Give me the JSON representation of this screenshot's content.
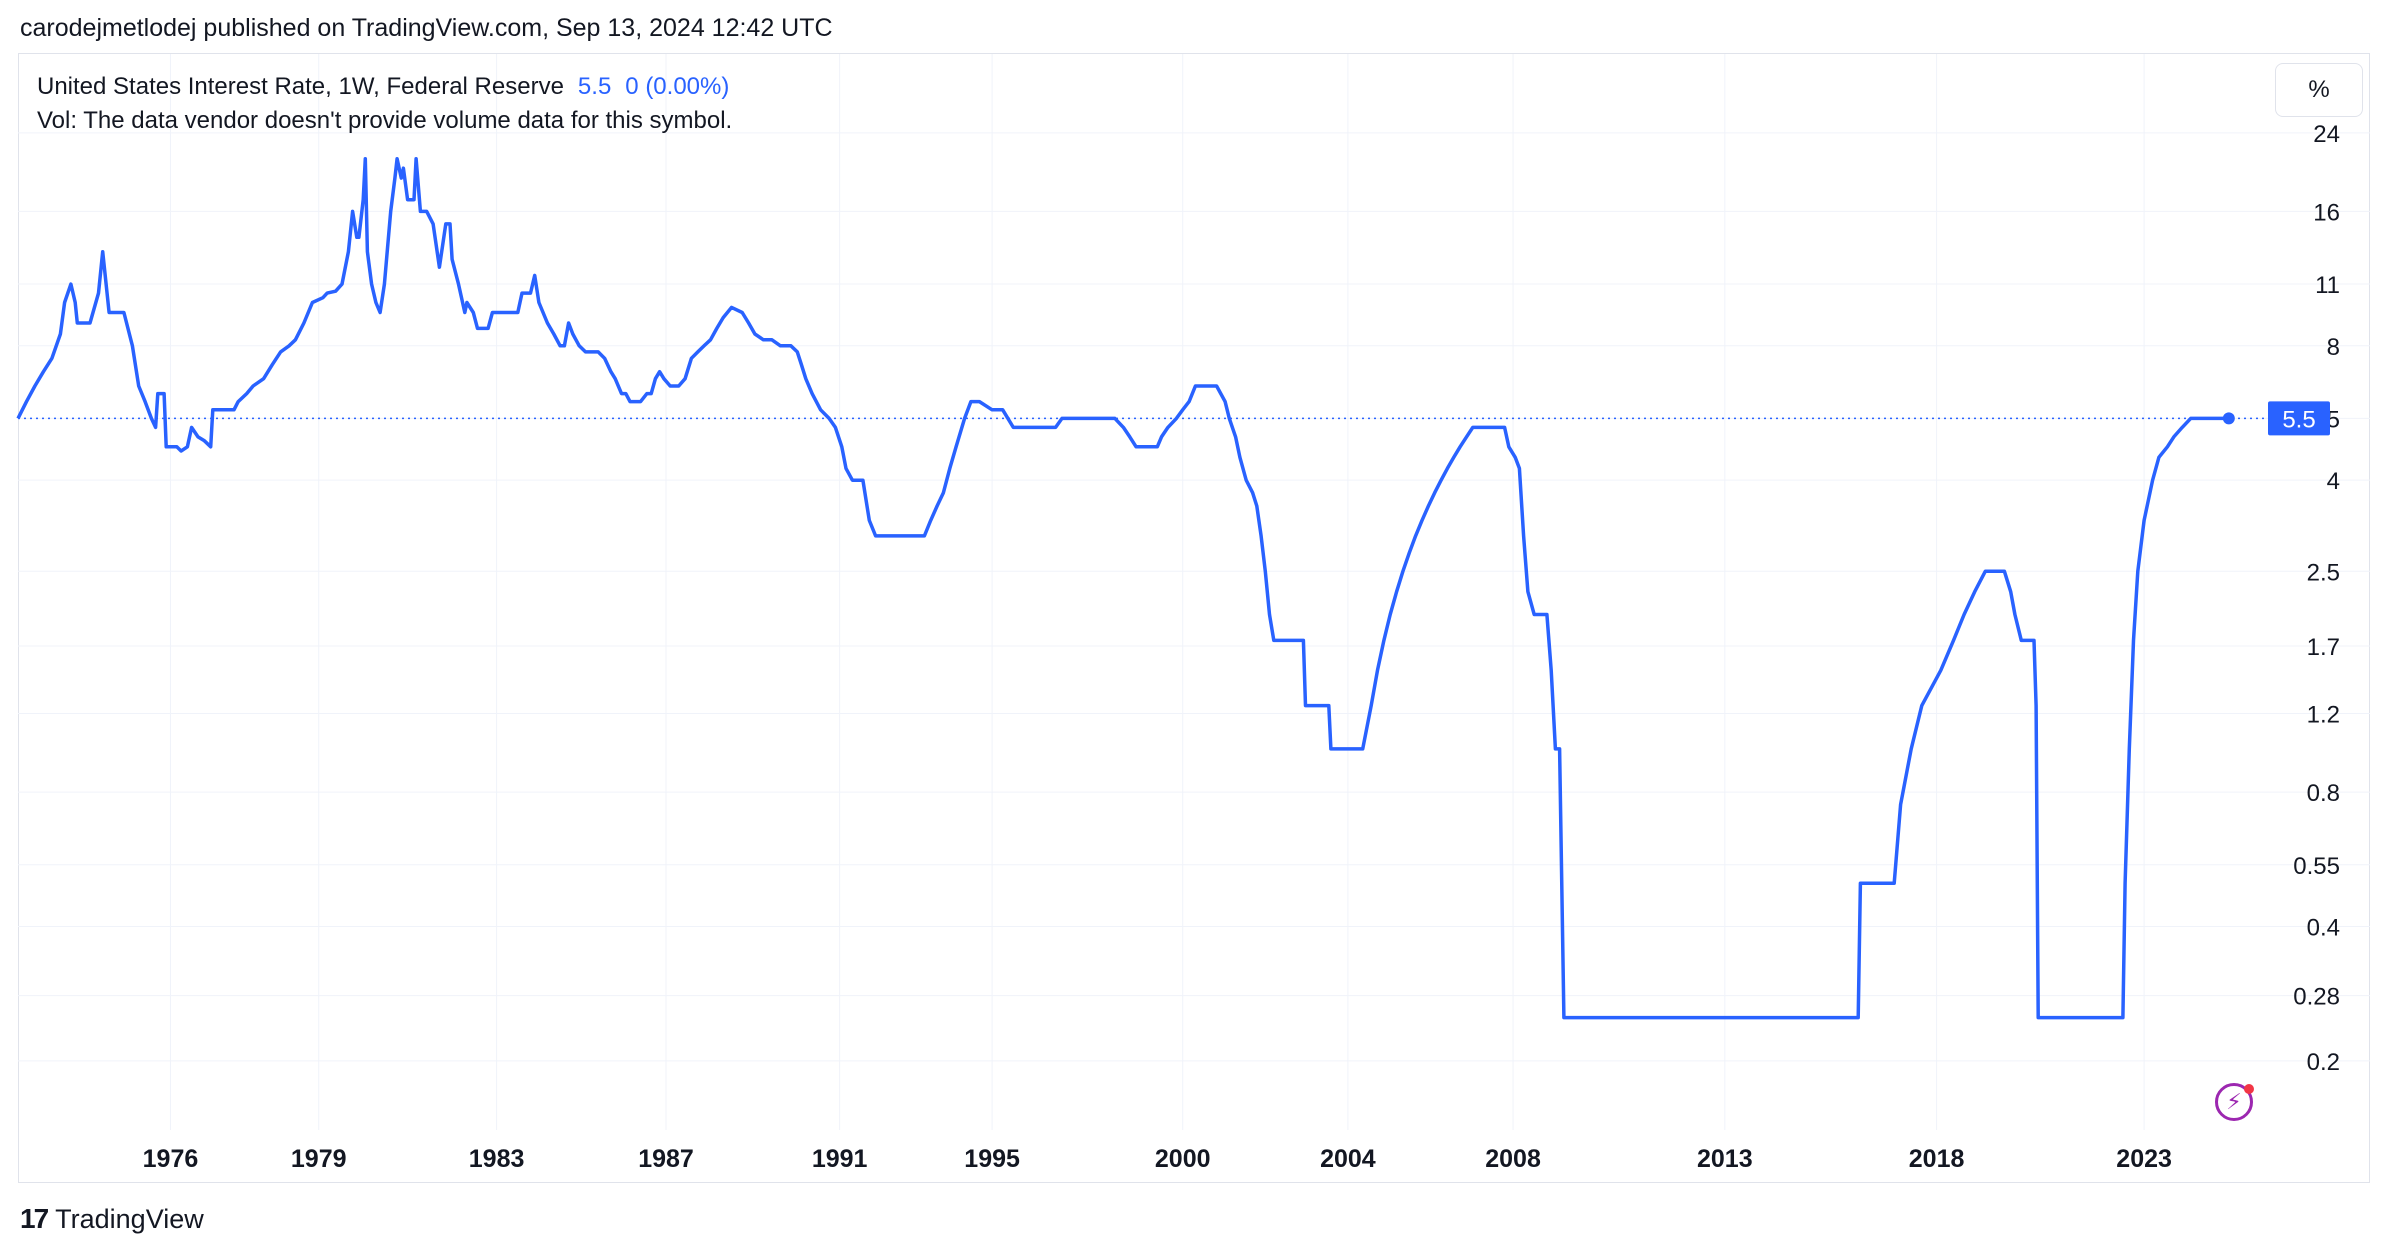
{
  "header": {
    "published_line": "carodejmetlodej published on TradingView.com, Sep 13, 2024 12:42 UTC"
  },
  "legend": {
    "symbol": "United States Interest Rate, 1W, Federal Reserve",
    "last_value": "5.5",
    "change": "0 (0.00%)",
    "volume_note": "Vol: The data vendor doesn't provide volume data for this symbol."
  },
  "toolbar": {
    "unit_label": "%"
  },
  "price_label": "5.5",
  "footer": {
    "brand": "TradingView",
    "logo_mark": "17"
  },
  "colors": {
    "line": "#2962ff",
    "grid": "#f0f3fa",
    "text": "#131722",
    "accent": "#2962ff"
  },
  "chart_data": {
    "type": "line",
    "y_scale": "log",
    "ylim": [
      0.14,
      27
    ],
    "xlim": [
      1972.5,
      2025.2
    ],
    "y_ticks": [
      "24",
      "16",
      "11",
      "8",
      "5.5",
      "4",
      "2.5",
      "1.7",
      "1.2",
      "0.8",
      "0.55",
      "0.4",
      "0.28",
      "0.2"
    ],
    "y_tick_values": [
      24,
      16,
      11,
      8,
      5.5,
      4,
      2.5,
      1.7,
      1.2,
      0.8,
      0.55,
      0.4,
      0.28,
      0.2
    ],
    "x_ticks": [
      "1976",
      "1979",
      "1983",
      "1987",
      "1991",
      "1995",
      "2000",
      "2004",
      "2008",
      "2013",
      "2018",
      "2023"
    ],
    "x_tick_values": [
      1976.1,
      1979.6,
      1983.8,
      1987.8,
      1991.9,
      1995.5,
      2000.0,
      2003.9,
      2007.8,
      2012.8,
      2017.8,
      2022.7
    ],
    "current_value": 5.5,
    "series": [
      {
        "points": [
          [
            1972.5,
            5.5
          ],
          [
            1972.7,
            6.0
          ],
          [
            1972.9,
            6.5
          ],
          [
            1973.1,
            7.0
          ],
          [
            1973.3,
            7.5
          ],
          [
            1973.5,
            8.5
          ],
          [
            1973.6,
            10.0
          ],
          [
            1973.75,
            11.0
          ],
          [
            1973.85,
            10.0
          ],
          [
            1973.9,
            9.0
          ],
          [
            1974.2,
            9.0
          ],
          [
            1974.4,
            10.5
          ],
          [
            1974.5,
            13.0
          ],
          [
            1974.65,
            9.5
          ],
          [
            1975.0,
            9.5
          ],
          [
            1975.2,
            8.0
          ],
          [
            1975.35,
            6.5
          ],
          [
            1975.5,
            6.0
          ],
          [
            1975.65,
            5.5
          ],
          [
            1975.75,
            5.25
          ],
          [
            1975.8,
            6.25
          ],
          [
            1975.95,
            6.25
          ],
          [
            1976.0,
            4.75
          ],
          [
            1976.25,
            4.75
          ],
          [
            1976.35,
            4.65
          ],
          [
            1976.5,
            4.75
          ],
          [
            1976.6,
            5.25
          ],
          [
            1976.75,
            5.0
          ],
          [
            1976.9,
            4.9
          ],
          [
            1977.05,
            4.75
          ],
          [
            1977.1,
            5.75
          ],
          [
            1977.4,
            5.75
          ],
          [
            1977.6,
            5.75
          ],
          [
            1977.7,
            6.0
          ],
          [
            1977.9,
            6.25
          ],
          [
            1978.05,
            6.5
          ],
          [
            1978.3,
            6.75
          ],
          [
            1978.5,
            7.25
          ],
          [
            1978.7,
            7.75
          ],
          [
            1978.9,
            8.0
          ],
          [
            1979.05,
            8.25
          ],
          [
            1979.25,
            9.0
          ],
          [
            1979.45,
            10.0
          ],
          [
            1979.7,
            10.25
          ],
          [
            1979.8,
            10.5
          ],
          [
            1980.0,
            10.6
          ],
          [
            1980.15,
            11.0
          ],
          [
            1980.3,
            13.0
          ],
          [
            1980.4,
            16.0
          ],
          [
            1980.5,
            14.0
          ],
          [
            1980.55,
            14.0
          ],
          [
            1980.65,
            17.0
          ],
          [
            1980.7,
            21.0
          ],
          [
            1980.75,
            13.0
          ],
          [
            1980.85,
            11.0
          ],
          [
            1980.95,
            10.0
          ],
          [
            1981.05,
            9.5
          ],
          [
            1981.15,
            11.0
          ],
          [
            1981.3,
            16.0
          ],
          [
            1981.4,
            19.0
          ],
          [
            1981.45,
            21.0
          ],
          [
            1981.55,
            19.0
          ],
          [
            1981.6,
            20.0
          ],
          [
            1981.7,
            17.0
          ],
          [
            1981.85,
            17.0
          ],
          [
            1981.9,
            21.0
          ],
          [
            1982.0,
            16.0
          ],
          [
            1982.15,
            16.0
          ],
          [
            1982.3,
            15.0
          ],
          [
            1982.45,
            12.0
          ],
          [
            1982.6,
            15.0
          ],
          [
            1982.7,
            15.0
          ],
          [
            1982.75,
            12.5
          ],
          [
            1982.9,
            11.0
          ],
          [
            1983.05,
            9.5
          ],
          [
            1983.1,
            10.0
          ],
          [
            1983.25,
            9.5
          ],
          [
            1983.35,
            8.75
          ],
          [
            1983.6,
            8.75
          ],
          [
            1983.7,
            9.5
          ],
          [
            1984.0,
            9.5
          ],
          [
            1984.3,
            9.5
          ],
          [
            1984.4,
            10.5
          ],
          [
            1984.6,
            10.5
          ],
          [
            1984.7,
            11.5
          ],
          [
            1984.8,
            10.0
          ],
          [
            1985.0,
            9.0
          ],
          [
            1985.15,
            8.5
          ],
          [
            1985.3,
            8.0
          ],
          [
            1985.4,
            8.0
          ],
          [
            1985.5,
            9.0
          ],
          [
            1985.6,
            8.5
          ],
          [
            1985.75,
            8.0
          ],
          [
            1985.9,
            7.75
          ],
          [
            1986.2,
            7.75
          ],
          [
            1986.35,
            7.5
          ],
          [
            1986.5,
            7.0
          ],
          [
            1986.6,
            6.75
          ],
          [
            1986.75,
            6.25
          ],
          [
            1986.85,
            6.25
          ],
          [
            1986.95,
            6.0
          ],
          [
            1987.2,
            6.0
          ],
          [
            1987.35,
            6.25
          ],
          [
            1987.45,
            6.25
          ],
          [
            1987.55,
            6.75
          ],
          [
            1987.65,
            7.0
          ],
          [
            1987.75,
            6.75
          ],
          [
            1987.9,
            6.5
          ],
          [
            1988.1,
            6.5
          ],
          [
            1988.25,
            6.75
          ],
          [
            1988.4,
            7.5
          ],
          [
            1988.55,
            7.75
          ],
          [
            1988.7,
            8.0
          ],
          [
            1988.85,
            8.25
          ],
          [
            1989.0,
            8.75
          ],
          [
            1989.15,
            9.25
          ],
          [
            1989.35,
            9.75
          ],
          [
            1989.6,
            9.5
          ],
          [
            1989.75,
            9.0
          ],
          [
            1989.9,
            8.5
          ],
          [
            1990.1,
            8.25
          ],
          [
            1990.3,
            8.25
          ],
          [
            1990.5,
            8.0
          ],
          [
            1990.75,
            8.0
          ],
          [
            1990.9,
            7.75
          ],
          [
            1991.0,
            7.25
          ],
          [
            1991.1,
            6.75
          ],
          [
            1991.25,
            6.25
          ],
          [
            1991.45,
            5.75
          ],
          [
            1991.65,
            5.5
          ],
          [
            1991.8,
            5.25
          ],
          [
            1991.95,
            4.75
          ],
          [
            1992.05,
            4.25
          ],
          [
            1992.2,
            4.0
          ],
          [
            1992.45,
            4.0
          ],
          [
            1992.6,
            3.25
          ],
          [
            1992.75,
            3.0
          ],
          [
            1993.0,
            3.0
          ],
          [
            1993.5,
            3.0
          ],
          [
            1993.9,
            3.0
          ],
          [
            1994.05,
            3.25
          ],
          [
            1994.2,
            3.5
          ],
          [
            1994.35,
            3.75
          ],
          [
            1994.5,
            4.25
          ],
          [
            1994.65,
            4.75
          ],
          [
            1994.85,
            5.5
          ],
          [
            1995.0,
            6.0
          ],
          [
            1995.2,
            6.0
          ],
          [
            1995.5,
            5.75
          ],
          [
            1995.75,
            5.75
          ],
          [
            1996.0,
            5.25
          ],
          [
            1996.3,
            5.25
          ],
          [
            1996.75,
            5.25
          ],
          [
            1997.0,
            5.25
          ],
          [
            1997.15,
            5.5
          ],
          [
            1997.5,
            5.5
          ],
          [
            1998.0,
            5.5
          ],
          [
            1998.4,
            5.5
          ],
          [
            1998.6,
            5.25
          ],
          [
            1998.75,
            5.0
          ],
          [
            1998.9,
            4.75
          ],
          [
            1999.1,
            4.75
          ],
          [
            1999.4,
            4.75
          ],
          [
            1999.5,
            5.0
          ],
          [
            1999.65,
            5.25
          ],
          [
            1999.85,
            5.5
          ],
          [
            2000.0,
            5.75
          ],
          [
            2000.15,
            6.0
          ],
          [
            2000.3,
            6.5
          ],
          [
            2000.6,
            6.5
          ],
          [
            2000.8,
            6.5
          ],
          [
            2001.0,
            6.0
          ],
          [
            2001.1,
            5.5
          ],
          [
            2001.25,
            5.0
          ],
          [
            2001.35,
            4.5
          ],
          [
            2001.5,
            4.0
          ],
          [
            2001.65,
            3.75
          ],
          [
            2001.75,
            3.5
          ],
          [
            2001.85,
            3.0
          ],
          [
            2001.95,
            2.5
          ],
          [
            2002.05,
            2.0
          ],
          [
            2002.15,
            1.75
          ],
          [
            2002.5,
            1.75
          ],
          [
            2002.85,
            1.75
          ],
          [
            2002.9,
            1.25
          ],
          [
            2003.2,
            1.25
          ],
          [
            2003.45,
            1.25
          ],
          [
            2003.5,
            1.0
          ],
          [
            2003.75,
            1.0
          ],
          [
            2004.0,
            1.0
          ],
          [
            2004.25,
            1.0
          ],
          [
            2004.45,
            1.25
          ],
          [
            2004.6,
            1.5
          ],
          [
            2004.75,
            1.75
          ],
          [
            2004.9,
            2.0
          ],
          [
            2005.05,
            2.25
          ],
          [
            2005.2,
            2.5
          ],
          [
            2005.35,
            2.75
          ],
          [
            2005.5,
            3.0
          ],
          [
            2005.65,
            3.25
          ],
          [
            2005.8,
            3.5
          ],
          [
            2005.95,
            3.75
          ],
          [
            2006.1,
            4.0
          ],
          [
            2006.25,
            4.25
          ],
          [
            2006.4,
            4.5
          ],
          [
            2006.55,
            4.75
          ],
          [
            2006.7,
            5.0
          ],
          [
            2006.85,
            5.25
          ],
          [
            2007.2,
            5.25
          ],
          [
            2007.6,
            5.25
          ],
          [
            2007.7,
            4.75
          ],
          [
            2007.85,
            4.5
          ],
          [
            2007.95,
            4.25
          ],
          [
            2008.05,
            3.0
          ],
          [
            2008.15,
            2.25
          ],
          [
            2008.3,
            2.0
          ],
          [
            2008.6,
            2.0
          ],
          [
            2008.7,
            1.5
          ],
          [
            2008.8,
            1.0
          ],
          [
            2008.9,
            1.0
          ],
          [
            2009.0,
            0.25
          ],
          [
            2010.0,
            0.25
          ],
          [
            2012.0,
            0.25
          ],
          [
            2014.0,
            0.25
          ],
          [
            2015.5,
            0.25
          ],
          [
            2015.95,
            0.25
          ],
          [
            2016.0,
            0.5
          ],
          [
            2016.8,
            0.5
          ],
          [
            2016.95,
            0.75
          ],
          [
            2017.2,
            1.0
          ],
          [
            2017.45,
            1.25
          ],
          [
            2017.9,
            1.5
          ],
          [
            2018.2,
            1.75
          ],
          [
            2018.45,
            2.0
          ],
          [
            2018.7,
            2.25
          ],
          [
            2018.95,
            2.5
          ],
          [
            2019.4,
            2.5
          ],
          [
            2019.55,
            2.25
          ],
          [
            2019.65,
            2.0
          ],
          [
            2019.8,
            1.75
          ],
          [
            2020.1,
            1.75
          ],
          [
            2020.15,
            1.25
          ],
          [
            2020.2,
            0.25
          ],
          [
            2021.0,
            0.25
          ],
          [
            2021.9,
            0.25
          ],
          [
            2022.2,
            0.25
          ],
          [
            2022.25,
            0.5
          ],
          [
            2022.35,
            1.0
          ],
          [
            2022.45,
            1.75
          ],
          [
            2022.55,
            2.5
          ],
          [
            2022.7,
            3.25
          ],
          [
            2022.9,
            4.0
          ],
          [
            2023.05,
            4.5
          ],
          [
            2023.25,
            4.75
          ],
          [
            2023.4,
            5.0
          ],
          [
            2023.6,
            5.25
          ],
          [
            2023.8,
            5.5
          ],
          [
            2024.2,
            5.5
          ],
          [
            2024.7,
            5.5
          ]
        ]
      }
    ]
  }
}
